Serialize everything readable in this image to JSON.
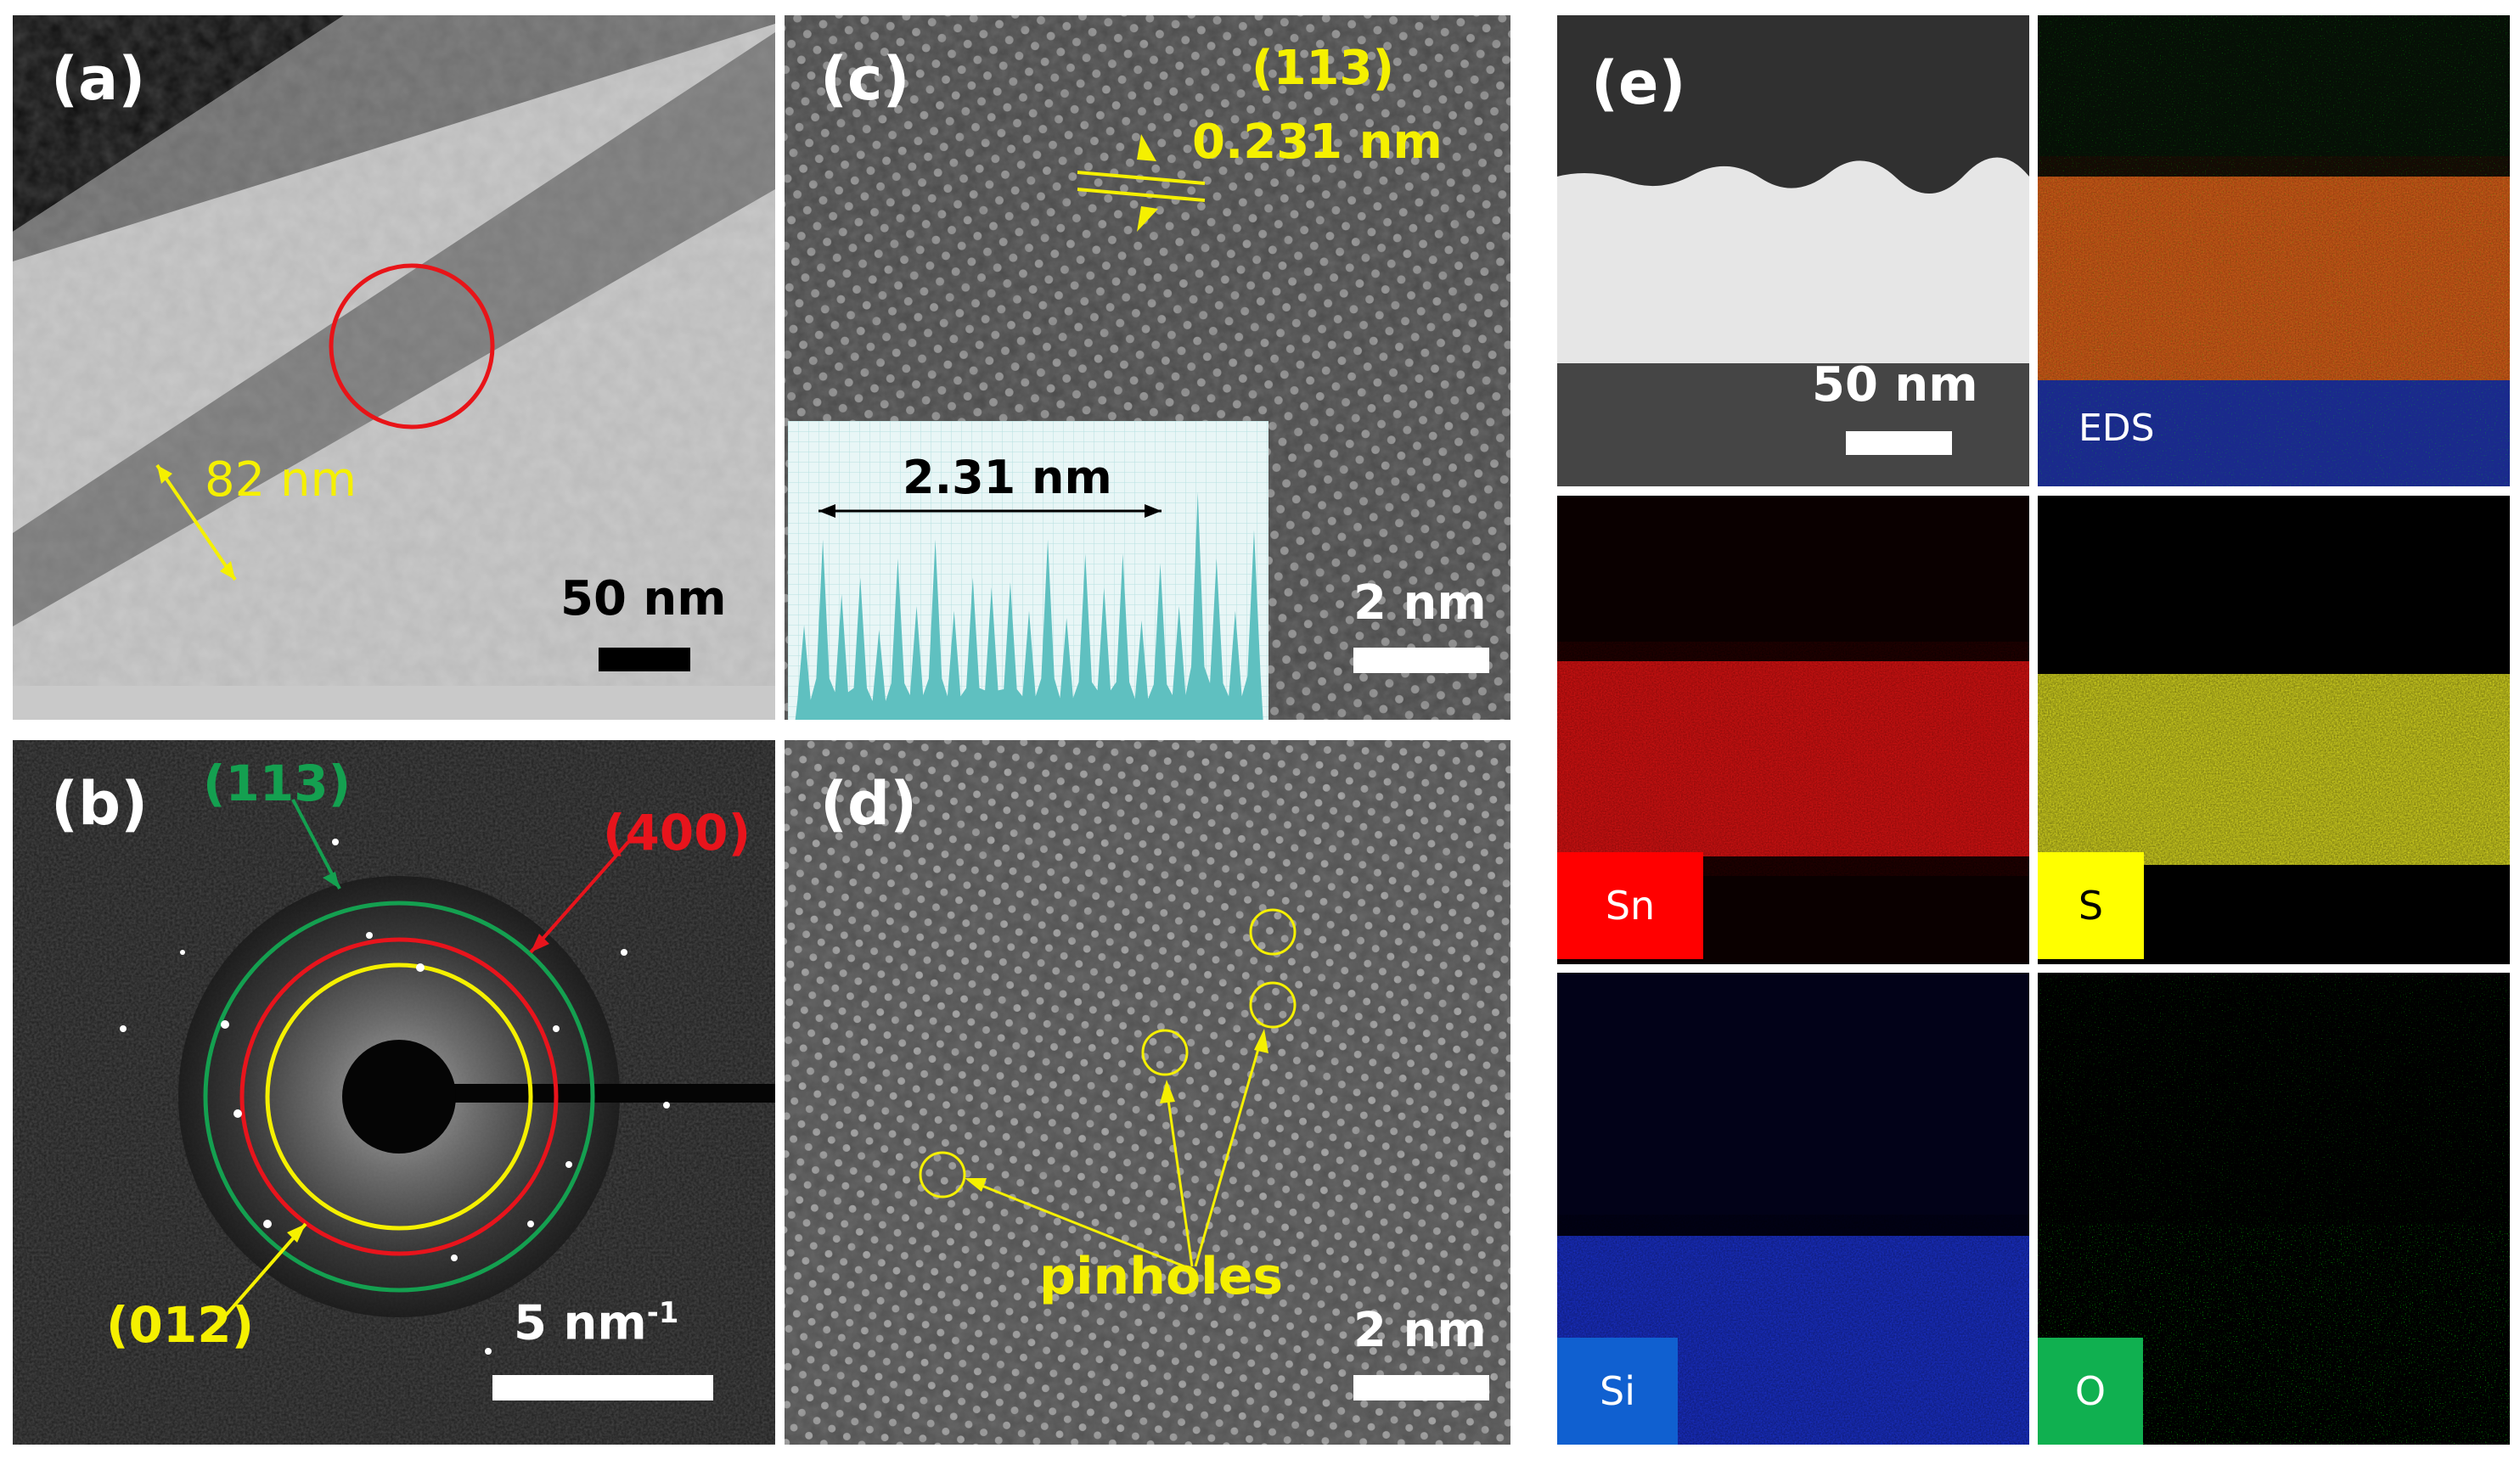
{
  "panels": {
    "a": {
      "label": "(a)",
      "thickness": "82 nm",
      "scale": "50 nm"
    },
    "b": {
      "label": "(b)",
      "ring_outer": "(113)",
      "ring_middle": "(400)",
      "ring_inner": "(012)",
      "scale": "5 nm",
      "scale_sup": "-1"
    },
    "c": {
      "label": "(c)",
      "plane": "(113)",
      "spacing": "0.231 nm",
      "profile_label": "2.31 nm",
      "scale": "2 nm"
    },
    "d": {
      "label": "(d)",
      "annotation": "pinholes",
      "scale": "2 nm"
    },
    "e": {
      "label": "(e)",
      "scale": "50 nm",
      "eds": "EDS",
      "elements": {
        "sn": "Sn",
        "s": "S",
        "si": "Si",
        "o": "O"
      }
    }
  },
  "colors": {
    "yellow": "#f5f000",
    "red": "#e8141c",
    "green": "#14a050",
    "sn_chip": "#ff0000",
    "s_chip": "#ffff00",
    "si_chip": "#1060d0",
    "o_chip": "#10b050",
    "profile_fill": "#5fc0c0"
  },
  "profile_peaks": [
    0.42,
    0.78,
    0.55,
    0.62,
    0.4,
    0.7,
    0.5,
    0.78,
    0.48,
    0.62,
    0.58,
    0.6,
    0.48,
    0.78,
    0.45,
    0.72,
    0.58,
    0.72,
    0.44,
    0.68,
    0.5,
    0.98,
    0.7,
    0.48,
    0.82
  ]
}
